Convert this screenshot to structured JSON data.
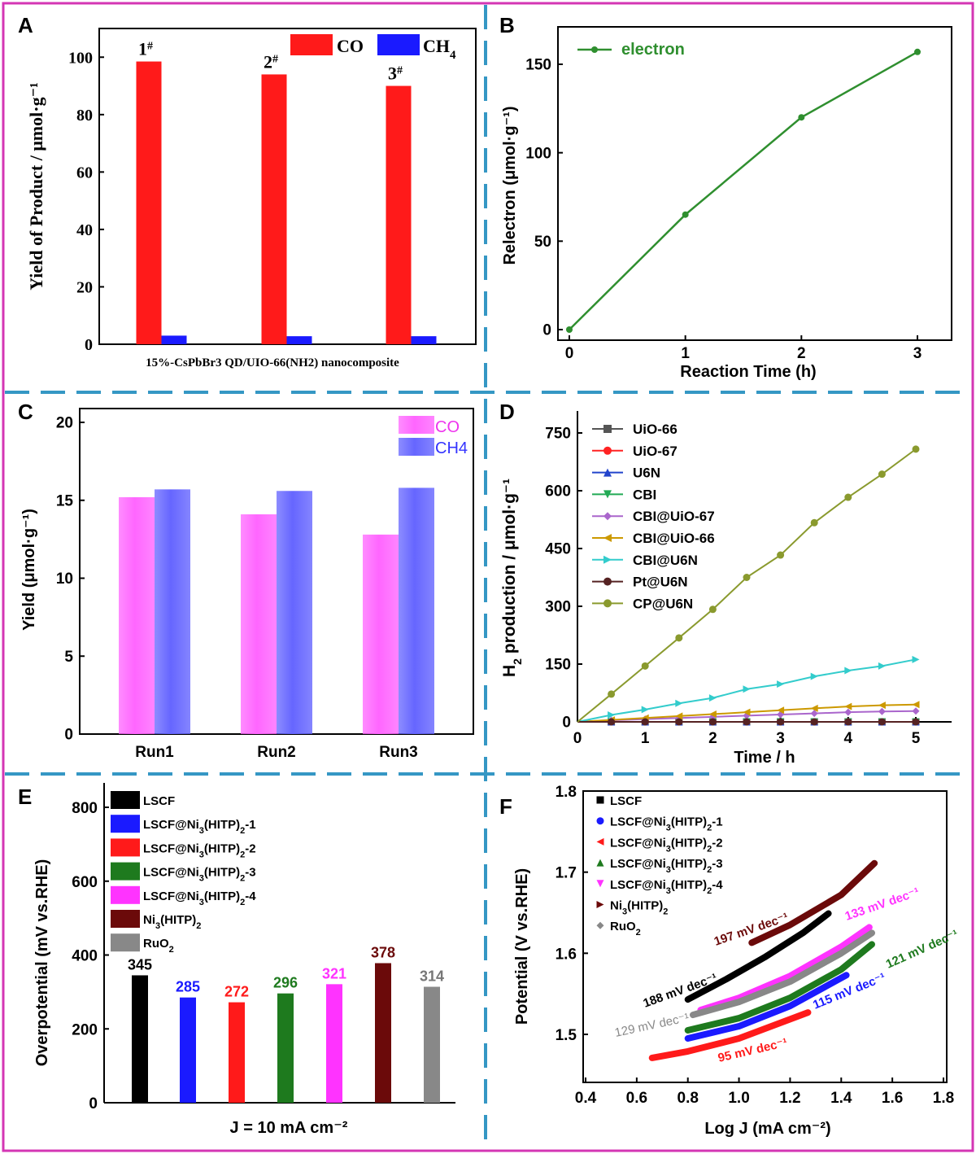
{
  "colors": {
    "frame": "#d436b4",
    "divider": "#3597c4",
    "co_red": "#ff1a1a",
    "ch4_blue": "#1a1aff",
    "green_line": "#2f8f2f",
    "pink": "#ff66ff",
    "bar_blue": "#6666ff"
  },
  "chart_data": [
    {
      "panel": "A",
      "type": "bar",
      "xlabel": "15%-CsPbBr3 QD/UIO-66(NH2) nanocomposite",
      "ylabel": "Yield of Product / μmol·g⁻¹",
      "ylim": [
        0,
        110
      ],
      "yticks": [
        "0",
        "20",
        "40",
        "60",
        "80",
        "100"
      ],
      "categories": [
        "1#",
        "2#",
        "3#"
      ],
      "category_labels": [
        {
          "main": "1",
          "sup": "#"
        },
        {
          "main": "2",
          "sup": "#"
        },
        {
          "main": "3",
          "sup": "#"
        }
      ],
      "series": [
        {
          "name": "CO",
          "color": "#ff1a1a",
          "values": [
            98.5,
            94,
            90
          ]
        },
        {
          "name": "CH4",
          "color": "#1a1aff",
          "values": [
            3,
            2.8,
            2.8
          ]
        }
      ],
      "legend": [
        "CO",
        "CH4"
      ]
    },
    {
      "panel": "B",
      "type": "line",
      "xlabel": "Reaction Time (h)",
      "ylabel": "Relectron (μmol·g⁻¹)",
      "xlim": [
        0,
        3.3
      ],
      "ylim": [
        -5,
        168
      ],
      "xticks": [
        "0",
        "1",
        "2",
        "3"
      ],
      "yticks": [
        "0",
        "50",
        "100",
        "150"
      ],
      "series": [
        {
          "name": "electron",
          "color": "#2f8f2f",
          "x": [
            0,
            1,
            2,
            3
          ],
          "y": [
            0,
            65,
            120,
            157
          ]
        }
      ]
    },
    {
      "panel": "C",
      "type": "bar",
      "xlabel": "",
      "ylabel": "Yield (μmol·g⁻¹)",
      "ylim": [
        0,
        21
      ],
      "yticks": [
        "0",
        "5",
        "10",
        "15",
        "20"
      ],
      "categories": [
        "Run1",
        "Run2",
        "Run3"
      ],
      "series": [
        {
          "name": "CO",
          "color": "#ff66ff",
          "values": [
            15.2,
            14.1,
            12.8
          ]
        },
        {
          "name": "CH4",
          "color": "#6666ff",
          "values": [
            15.7,
            15.6,
            15.8
          ]
        }
      ]
    },
    {
      "panel": "D",
      "type": "line",
      "xlabel": "Time / h",
      "ylabel": "H2 production / μmol·g⁻¹",
      "xlim": [
        0,
        5.3
      ],
      "ylim": [
        -10,
        790
      ],
      "xticks": [
        "0",
        "1",
        "2",
        "3",
        "4",
        "5"
      ],
      "yticks": [
        "0",
        "150",
        "300",
        "450",
        "600",
        "750"
      ],
      "x": [
        0,
        0.5,
        1,
        1.5,
        2,
        2.5,
        3,
        3.5,
        4,
        4.5,
        5
      ],
      "series": [
        {
          "name": "UiO-66",
          "color": "#555555",
          "marker": "square",
          "y": [
            0,
            0,
            0,
            0,
            0,
            0,
            0,
            0,
            0,
            0,
            0
          ]
        },
        {
          "name": "UiO-67",
          "color": "#ff2222",
          "marker": "circle",
          "y": [
            0,
            0,
            0,
            0,
            0,
            0,
            0,
            0,
            0,
            0,
            0
          ]
        },
        {
          "name": "U6N",
          "color": "#2244cc",
          "marker": "triangle-up",
          "y": [
            0,
            0,
            0,
            0,
            0,
            0,
            0,
            0,
            0,
            0,
            0
          ]
        },
        {
          "name": "CBI",
          "color": "#22aa55",
          "marker": "triangle-down",
          "y": [
            0,
            0,
            0,
            0,
            0,
            0,
            0,
            0,
            0,
            0,
            0
          ]
        },
        {
          "name": "CBI@UiO-67",
          "color": "#aa66cc",
          "marker": "diamond",
          "y": [
            0,
            4,
            7,
            10,
            13,
            16,
            19,
            22,
            25,
            27,
            28
          ]
        },
        {
          "name": "CBI@UiO-66",
          "color": "#cc9900",
          "marker": "triangle-left",
          "y": [
            0,
            5,
            10,
            15,
            20,
            25,
            30,
            35,
            40,
            43,
            45
          ]
        },
        {
          "name": "CBI@U6N",
          "color": "#33cccc",
          "marker": "triangle-right",
          "y": [
            0,
            18,
            32,
            48,
            62,
            85,
            98,
            118,
            133,
            145,
            162
          ]
        },
        {
          "name": "Pt@U6N",
          "color": "#552222",
          "marker": "circle",
          "y": [
            0,
            0,
            0,
            0,
            0,
            0,
            0,
            0,
            0,
            0,
            0
          ]
        },
        {
          "name": "CP@U6N",
          "color": "#8a9a2e",
          "marker": "circle",
          "y": [
            0,
            72,
            145,
            218,
            292,
            375,
            433,
            517,
            583,
            643,
            708
          ]
        }
      ]
    },
    {
      "panel": "E",
      "type": "bar",
      "xlabel": "J = 10 mA cm⁻²",
      "ylabel": "Overpotential (mV vs.RHE)",
      "ylim": [
        0,
        850
      ],
      "yticks": [
        "0",
        "200",
        "400",
        "600",
        "800"
      ],
      "categories": [
        "LSCF",
        "LSCF@Ni3(HITP)2-1",
        "LSCF@Ni3(HITP)2-2",
        "LSCF@Ni3(HITP)2-3",
        "LSCF@Ni3(HITP)2-4",
        "Ni3(HITP)2",
        "RuO2"
      ],
      "values": [
        345,
        285,
        272,
        296,
        321,
        378,
        314
      ],
      "value_labels": [
        "345",
        "285",
        "272",
        "296",
        "321",
        "378",
        "314"
      ],
      "bar_colors": [
        "#000000",
        "#1a1aff",
        "#ff1a1a",
        "#1e7a1e",
        "#ff33ff",
        "#6b0a0a",
        "#888888"
      ],
      "label_colors": [
        "#000000",
        "#1a1aff",
        "#ff1a1a",
        "#1e7a1e",
        "#ff33ff",
        "#6b0a0a",
        "#777777"
      ],
      "legend": [
        "LSCF",
        "LSCF@Ni3(HITP)2-1",
        "LSCF@Ni3(HITP)2-2",
        "LSCF@Ni3(HITP)2-3",
        "LSCF@Ni3(HITP)2-4",
        "Ni3(HITP)2",
        "RuO2"
      ]
    },
    {
      "panel": "F",
      "type": "line",
      "xlabel": "Log J (mA cm⁻²)",
      "ylabel": "Potential (V vs.RHE)",
      "xlim": [
        0.4,
        1.8
      ],
      "ylim": [
        1.43,
        1.8
      ],
      "xticks": [
        "0.4",
        "0.6",
        "0.8",
        "1.0",
        "1.2",
        "1.4",
        "1.6",
        "1.8"
      ],
      "yticks": [
        "1.5",
        "1.6",
        "1.7",
        "1.8"
      ],
      "legend": [
        "LSCF",
        "LSCF@Ni3(HITP)2-1",
        "LSCF@Ni3(HITP)2-2",
        "LSCF@Ni3(HITP)2-3",
        "LSCF@Ni3(HITP)2-4",
        "Ni3(HITP)2",
        "RuO2"
      ],
      "series": [
        {
          "name": "LSCF",
          "color": "#000000",
          "marker": "square",
          "x": [
            0.8,
            0.95,
            1.1,
            1.25,
            1.35
          ],
          "y": [
            1.543,
            1.568,
            1.595,
            1.625,
            1.649
          ],
          "tafel": "188 mV dec⁻¹"
        },
        {
          "name": "LSCF@Ni3(HITP)2-1",
          "color": "#1a1aff",
          "marker": "circle",
          "x": [
            0.8,
            1.0,
            1.2,
            1.42
          ],
          "y": [
            1.495,
            1.51,
            1.535,
            1.573
          ],
          "tafel": "115 mV dec⁻¹"
        },
        {
          "name": "LSCF@Ni3(HITP)2-2",
          "color": "#ff1a1a",
          "marker": "triangle-left",
          "x": [
            0.66,
            0.8,
            1.0,
            1.27
          ],
          "y": [
            1.471,
            1.479,
            1.495,
            1.527
          ],
          "tafel": "95 mV dec⁻¹"
        },
        {
          "name": "LSCF@Ni3(HITP)2-3",
          "color": "#1e7a1e",
          "marker": "triangle-up",
          "x": [
            0.8,
            1.0,
            1.2,
            1.4,
            1.52
          ],
          "y": [
            1.505,
            1.52,
            1.545,
            1.58,
            1.611
          ],
          "tafel": "121 mV dec⁻¹"
        },
        {
          "name": "LSCF@Ni3(HITP)2-4",
          "color": "#ff33ff",
          "marker": "triangle-down",
          "x": [
            0.85,
            1.0,
            1.2,
            1.4,
            1.51
          ],
          "y": [
            1.53,
            1.545,
            1.572,
            1.608,
            1.632
          ],
          "tafel": "133 mV dec⁻¹"
        },
        {
          "name": "Ni3(HITP)2",
          "color": "#6b0a0a",
          "marker": "triangle-right",
          "x": [
            1.05,
            1.2,
            1.4,
            1.53
          ],
          "y": [
            1.613,
            1.635,
            1.672,
            1.711
          ],
          "tafel": "197 mV dec⁻¹"
        },
        {
          "name": "RuO2",
          "color": "#888888",
          "marker": "diamond",
          "x": [
            0.82,
            1.0,
            1.2,
            1.4,
            1.52
          ],
          "y": [
            1.524,
            1.54,
            1.565,
            1.6,
            1.625
          ],
          "tafel": "129 mV dec⁻¹"
        }
      ]
    }
  ],
  "panels": {
    "A": {
      "letter": "A"
    },
    "B": {
      "letter": "B"
    },
    "C": {
      "letter": "C"
    },
    "D": {
      "letter": "D"
    },
    "E": {
      "letter": "E"
    },
    "F": {
      "letter": "F"
    }
  }
}
